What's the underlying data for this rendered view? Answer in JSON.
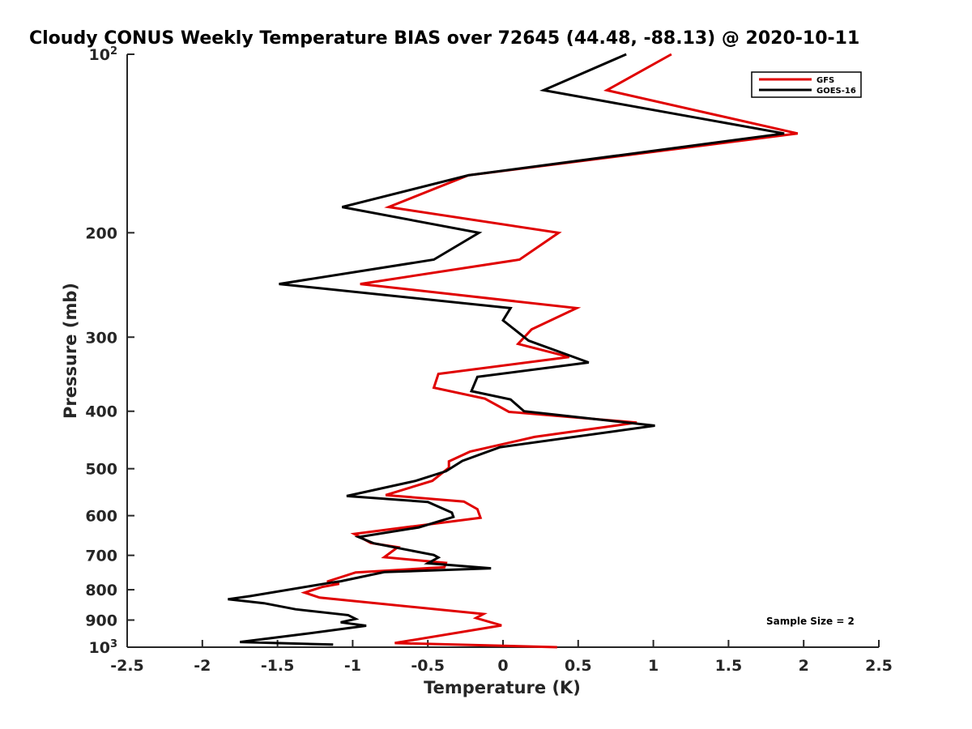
{
  "chart_data": {
    "type": "line",
    "title": "Cloudy CONUS Weekly Temperature BIAS over 72645 (44.48, -88.13) @ 2020-10-11",
    "xlabel": "Temperature (K)",
    "ylabel": "Pressure (mb)",
    "xlim": [
      -2.5,
      2.5
    ],
    "ylim": [
      100,
      1000
    ],
    "y_scale": "log",
    "y_direction": "reversed",
    "x_ticks": [
      "-2.5",
      "-2",
      "-1.5",
      "-1",
      "-0.5",
      "0",
      "0.5",
      "1",
      "1.5",
      "2",
      "2.5"
    ],
    "x_tick_values": [
      -2.5,
      -2,
      -1.5,
      -1,
      -0.5,
      0,
      0.5,
      1,
      1.5,
      2,
      2.5
    ],
    "y_ticks": [
      {
        "value": 100,
        "base": "10",
        "exp": "2"
      },
      {
        "value": 200,
        "label": "200"
      },
      {
        "value": 300,
        "label": "300"
      },
      {
        "value": 400,
        "label": "400"
      },
      {
        "value": 500,
        "label": "500"
      },
      {
        "value": 600,
        "label": "600"
      },
      {
        "value": 700,
        "label": "700"
      },
      {
        "value": 800,
        "label": "800"
      },
      {
        "value": 900,
        "label": "900"
      },
      {
        "value": 1000,
        "base": "10",
        "exp": "3"
      }
    ],
    "legend_position": "top-right",
    "grid": false,
    "annotation": "Sample Size = 2",
    "series": [
      {
        "name": "GFS",
        "color": "#e00000",
        "points": [
          [
            1.12,
            100
          ],
          [
            0.69,
            115
          ],
          [
            1.96,
            136
          ],
          [
            -0.23,
            160
          ],
          [
            -0.76,
            181
          ],
          [
            0.37,
            200
          ],
          [
            0.11,
            222
          ],
          [
            -0.95,
            244
          ],
          [
            0.49,
            268
          ],
          [
            0.19,
            291
          ],
          [
            0.1,
            308
          ],
          [
            0.44,
            324
          ],
          [
            -0.43,
            346
          ],
          [
            -0.46,
            365
          ],
          [
            -0.12,
            381
          ],
          [
            0.04,
            401
          ],
          [
            0.89,
            418
          ],
          [
            0.21,
            442
          ],
          [
            -0.22,
            468
          ],
          [
            -0.36,
            486
          ],
          [
            -0.36,
            498
          ],
          [
            -0.47,
            524
          ],
          [
            -0.78,
            554
          ],
          [
            -0.26,
            568
          ],
          [
            -0.17,
            585
          ],
          [
            -0.15,
            605
          ],
          [
            -0.99,
            644
          ],
          [
            -0.88,
            667
          ],
          [
            -0.7,
            678
          ],
          [
            -0.79,
            705
          ],
          [
            -0.38,
            721
          ],
          [
            -0.39,
            733
          ],
          [
            -0.98,
            748
          ],
          [
            -1.17,
            775
          ],
          [
            -1.09,
            782
          ],
          [
            -1.2,
            791
          ],
          [
            -1.32,
            809
          ],
          [
            -1.22,
            825
          ],
          [
            -0.13,
            879
          ],
          [
            -0.18,
            893
          ],
          [
            -0.01,
            919
          ],
          [
            -0.72,
            984
          ],
          [
            0.36,
            1000
          ]
        ]
      },
      {
        "name": "GOES-16",
        "color": "#000000",
        "points": [
          [
            0.82,
            100
          ],
          [
            0.27,
            115
          ],
          [
            1.87,
            136
          ],
          [
            -0.23,
            160
          ],
          [
            -1.07,
            181
          ],
          [
            -0.16,
            200
          ],
          [
            -0.46,
            222
          ],
          [
            -1.49,
            244
          ],
          [
            0.05,
            268
          ],
          [
            0.0,
            281
          ],
          [
            0.17,
            304
          ],
          [
            0.57,
            331
          ],
          [
            -0.17,
            350
          ],
          [
            -0.21,
            370
          ],
          [
            0.05,
            382
          ],
          [
            0.14,
            400
          ],
          [
            1.01,
            423
          ],
          [
            -0.02,
            460
          ],
          [
            -0.27,
            485
          ],
          [
            -0.38,
            505
          ],
          [
            -0.58,
            524
          ],
          [
            -1.04,
            556
          ],
          [
            -0.5,
            569
          ],
          [
            -0.34,
            593
          ],
          [
            -0.33,
            603
          ],
          [
            -0.56,
            628
          ],
          [
            -0.96,
            652
          ],
          [
            -0.86,
            668
          ],
          [
            -0.46,
            699
          ],
          [
            -0.43,
            706
          ],
          [
            -0.5,
            722
          ],
          [
            -0.08,
            736
          ],
          [
            -0.79,
            747
          ],
          [
            -1.08,
            774
          ],
          [
            -1.14,
            778
          ],
          [
            -1.68,
            820
          ],
          [
            -1.83,
            830
          ],
          [
            -1.59,
            843
          ],
          [
            -1.38,
            863
          ],
          [
            -1.03,
            883
          ],
          [
            -0.98,
            896
          ],
          [
            -1.08,
            908
          ],
          [
            -0.91,
            920
          ],
          [
            -1.31,
            949
          ],
          [
            -1.75,
            980
          ],
          [
            -1.13,
            990
          ]
        ]
      }
    ]
  }
}
